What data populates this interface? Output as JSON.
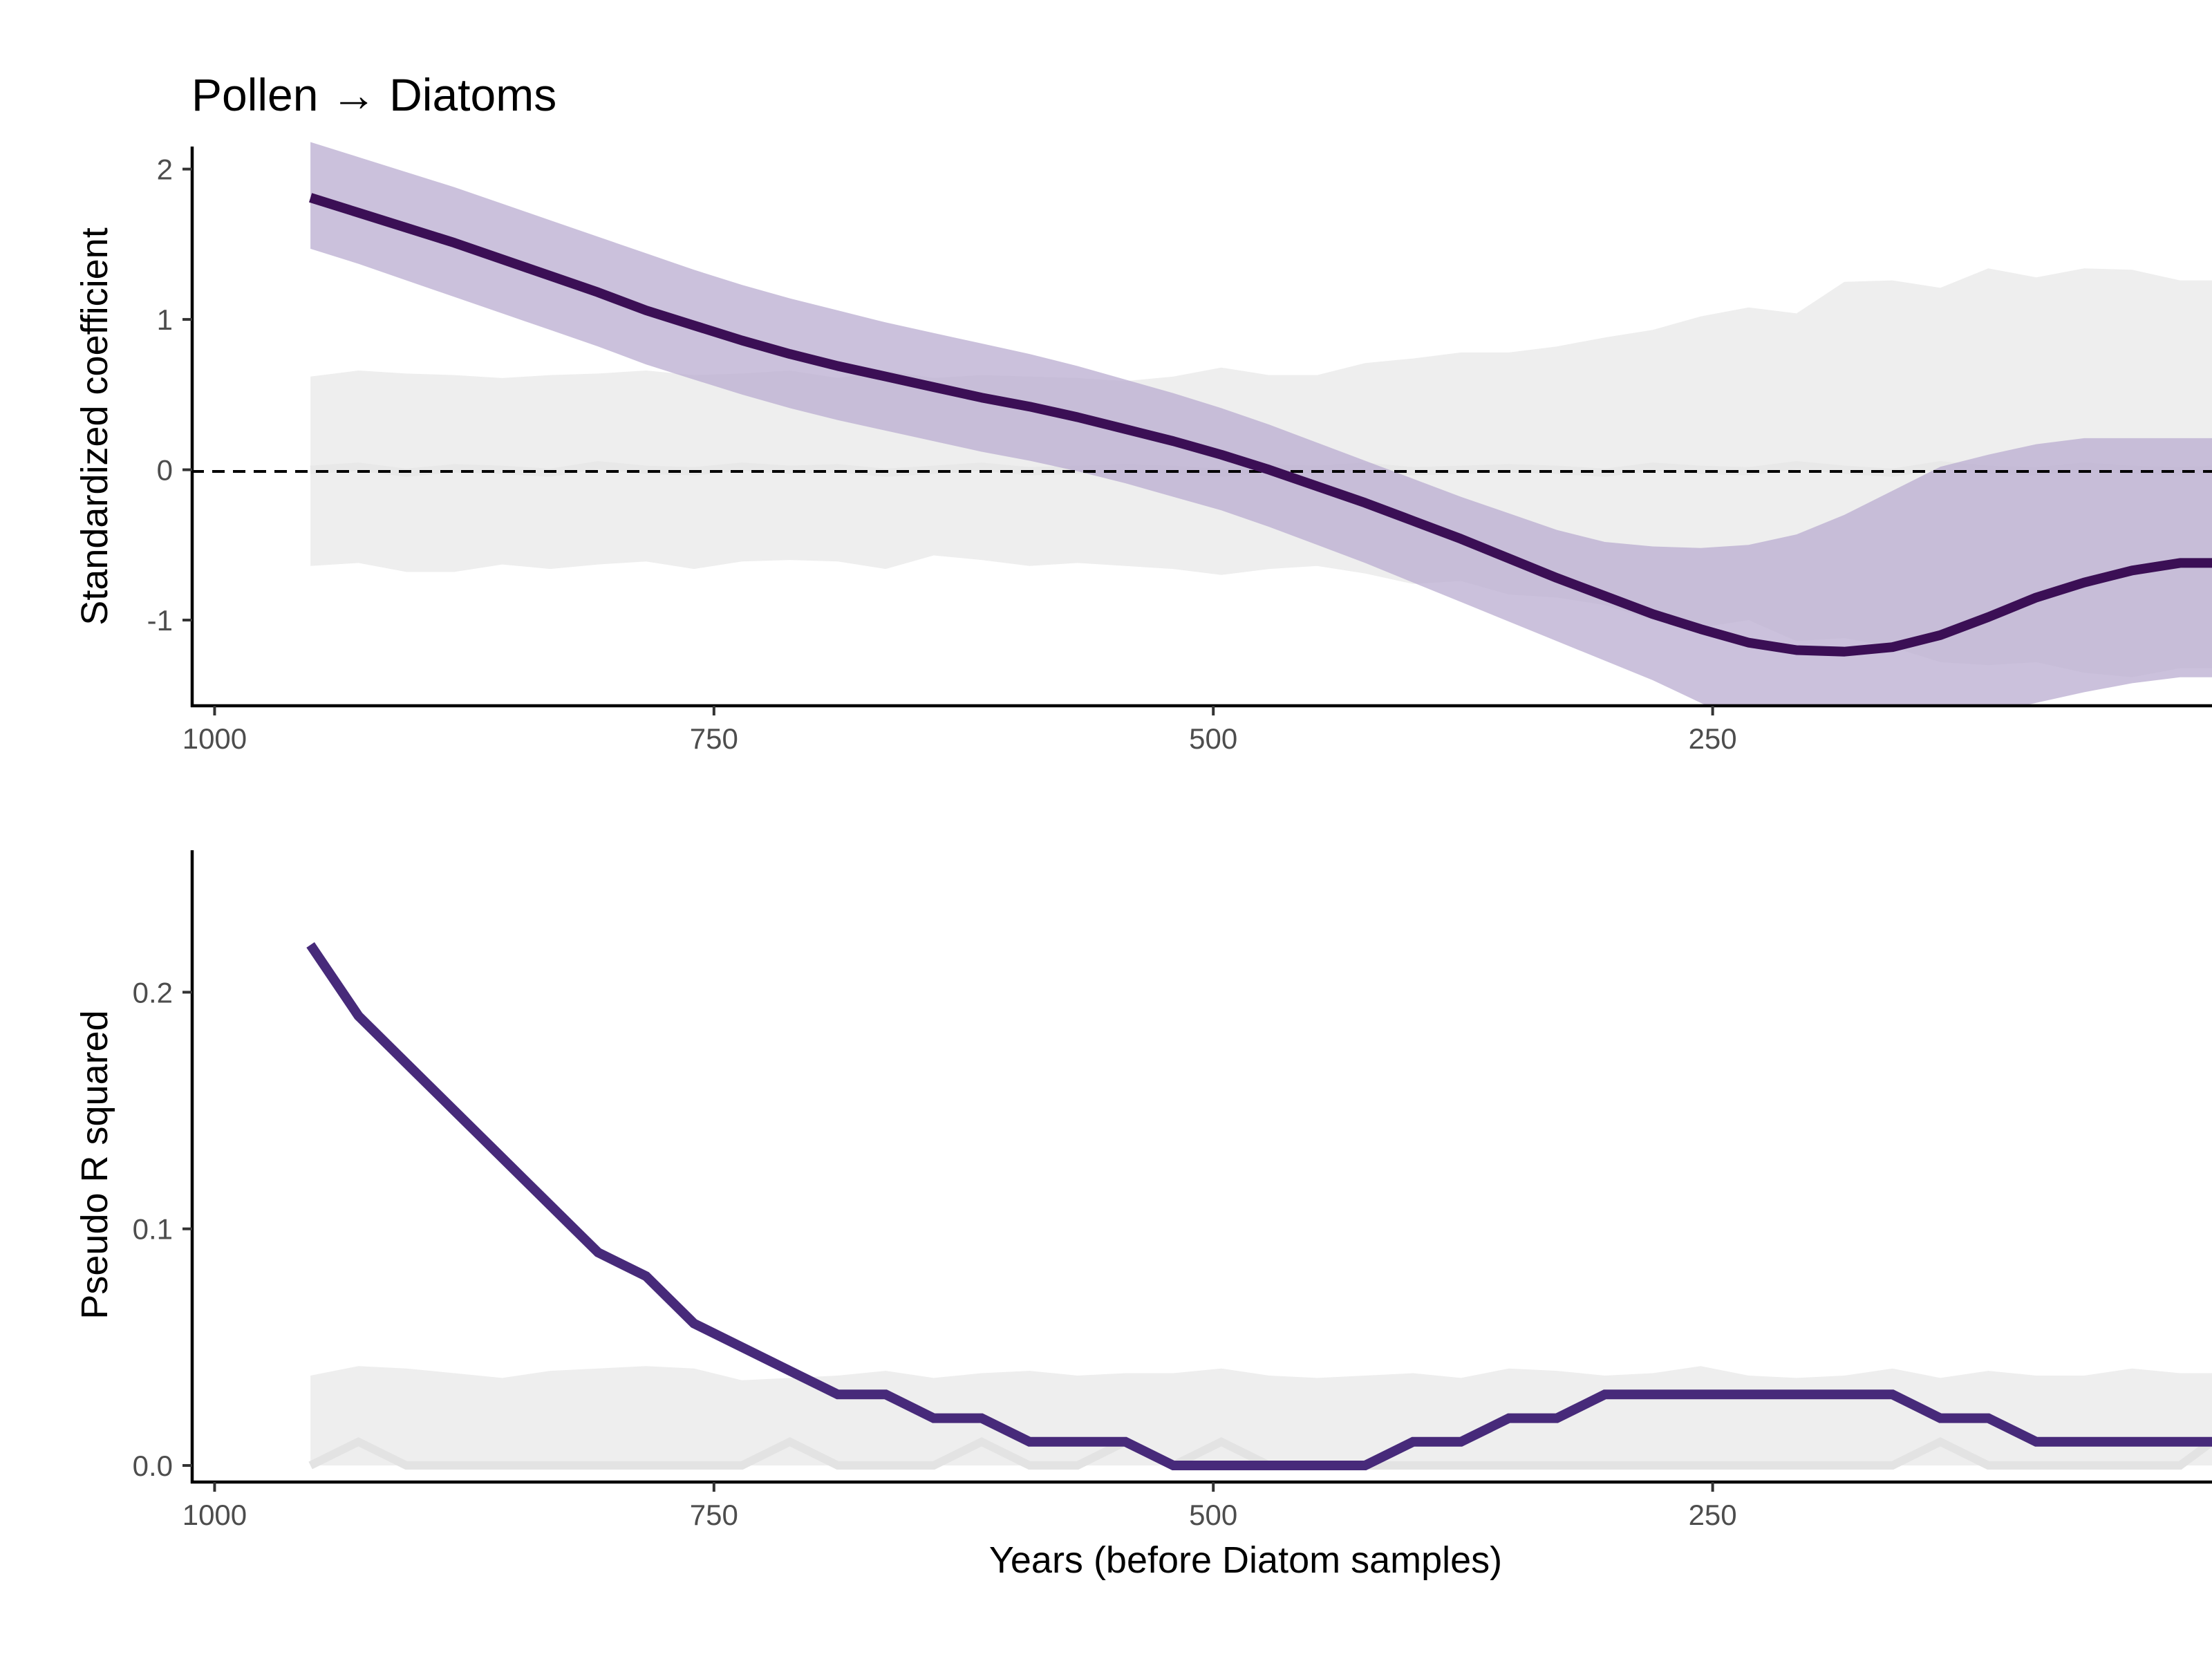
{
  "title": "Pollen → Diatoms",
  "chart_data": [
    {
      "type": "line",
      "panel": "top",
      "title": "Pollen → Diatoms",
      "xlabel": "",
      "ylabel": "Standardized coefficient",
      "xlim": [
        1005,
        0
      ],
      "x_reversed": true,
      "ylim": [
        -1.57,
        2.15
      ],
      "xticks": [
        1000,
        750,
        500,
        250
      ],
      "xtick_labels": [
        "1000",
        "750",
        "500",
        "250"
      ],
      "yticks": [
        2,
        1,
        0,
        -1
      ],
      "ytick_labels": [
        "2",
        "1",
        "0",
        "-1"
      ],
      "reference_line": 0,
      "grid": false,
      "x": [
        952,
        928,
        904,
        880,
        856,
        832,
        808,
        784,
        760,
        736,
        712,
        688,
        664,
        640,
        616,
        592,
        568,
        544,
        520,
        496,
        472,
        448,
        424,
        400,
        376,
        352,
        328,
        304,
        280,
        256,
        232,
        208,
        184,
        160,
        136,
        112,
        88,
        64,
        40,
        16,
        0
      ],
      "series": [
        {
          "role": "estimate",
          "color": "#3b0f55",
          "values": [
            1.81,
            1.71,
            1.61,
            1.51,
            1.4,
            1.29,
            1.18,
            1.06,
            0.96,
            0.86,
            0.77,
            0.69,
            0.62,
            0.55,
            0.48,
            0.42,
            0.35,
            0.27,
            0.19,
            0.1,
            0.0,
            -0.11,
            -0.22,
            -0.34,
            -0.46,
            -0.59,
            -0.72,
            -0.84,
            -0.96,
            -1.06,
            -1.15,
            -1.2,
            -1.21,
            -1.18,
            -1.1,
            -0.98,
            -0.85,
            -0.75,
            -0.67,
            -0.62,
            -0.62
          ]
        },
        {
          "role": "confidence_band",
          "color": "#b9acd0",
          "upper": [
            2.18,
            2.08,
            1.98,
            1.88,
            1.77,
            1.66,
            1.55,
            1.44,
            1.33,
            1.23,
            1.14,
            1.06,
            0.98,
            0.91,
            0.84,
            0.77,
            0.69,
            0.6,
            0.51,
            0.41,
            0.3,
            0.18,
            0.06,
            -0.06,
            -0.18,
            -0.29,
            -0.4,
            -0.48,
            -0.51,
            -0.52,
            -0.5,
            -0.43,
            -0.3,
            -0.14,
            0.02,
            0.1,
            0.17,
            0.21,
            0.21,
            0.21,
            0.21
          ],
          "lower": [
            1.47,
            1.37,
            1.26,
            1.15,
            1.04,
            0.93,
            0.82,
            0.7,
            0.6,
            0.5,
            0.41,
            0.33,
            0.26,
            0.19,
            0.12,
            0.06,
            -0.01,
            -0.09,
            -0.18,
            -0.27,
            -0.38,
            -0.5,
            -0.62,
            -0.75,
            -0.88,
            -1.01,
            -1.14,
            -1.27,
            -1.4,
            -1.55,
            -1.7,
            -1.85,
            -1.8,
            -1.75,
            -1.7,
            -1.62,
            -1.55,
            -1.48,
            -1.42,
            -1.38,
            -1.38
          ]
        },
        {
          "role": "null_band",
          "color": "#eeeeee",
          "upper": [
            0.62,
            0.66,
            0.64,
            0.63,
            0.61,
            0.63,
            0.64,
            0.66,
            0.63,
            0.64,
            0.66,
            0.61,
            0.66,
            0.61,
            0.63,
            0.62,
            0.61,
            0.59,
            0.62,
            0.68,
            0.63,
            0.63,
            0.71,
            0.74,
            0.78,
            0.78,
            0.82,
            0.88,
            0.93,
            1.02,
            1.08,
            1.04,
            1.25,
            1.26,
            1.21,
            1.34,
            1.28,
            1.34,
            1.33,
            1.26,
            1.26
          ],
          "lower": [
            -0.64,
            -0.62,
            -0.68,
            -0.68,
            -0.63,
            -0.66,
            -0.63,
            -0.61,
            -0.66,
            -0.61,
            -0.6,
            -0.61,
            -0.66,
            -0.57,
            -0.6,
            -0.64,
            -0.62,
            -0.64,
            -0.66,
            -0.7,
            -0.66,
            -0.64,
            -0.69,
            -0.76,
            -0.74,
            -0.83,
            -0.85,
            -0.9,
            -1.0,
            -1.05,
            -1.0,
            -1.14,
            -1.12,
            -1.18,
            -1.28,
            -1.3,
            -1.28,
            -1.35,
            -1.38,
            -1.32,
            -1.32
          ]
        },
        {
          "role": "null_median",
          "color": "#e8e8e8",
          "values": [
            0.0,
            0.02,
            -0.02,
            0.01,
            0.0,
            -0.02,
            0.03,
            0.0,
            -0.01,
            0.02,
            0.0,
            0.01,
            -0.02,
            0.0,
            0.02,
            -0.01,
            0.0,
            0.01,
            0.0,
            -0.02,
            0.01,
            0.0,
            0.02,
            -0.01,
            0.0,
            0.01,
            0.0,
            -0.02,
            0.02,
            0.0,
            -0.01,
            0.03,
            0.0,
            -0.02,
            0.03,
            0.0,
            -0.01,
            0.02,
            0.0,
            -0.01,
            0.0
          ]
        }
      ]
    },
    {
      "type": "line",
      "panel": "bottom",
      "xlabel": "Years (before Diatom samples)",
      "ylabel": "Pseudo R squared",
      "xlim": [
        1005,
        0
      ],
      "x_reversed": true,
      "ylim": [
        -0.007,
        0.26
      ],
      "xticks": [
        1000,
        750,
        500,
        250
      ],
      "xtick_labels": [
        "1000",
        "750",
        "500",
        "250"
      ],
      "yticks": [
        0.2,
        0.1,
        0.0
      ],
      "ytick_labels": [
        "0.2",
        "0.1",
        "0.0"
      ],
      "grid": false,
      "x": [
        952,
        928,
        904,
        880,
        856,
        832,
        808,
        784,
        760,
        736,
        712,
        688,
        664,
        640,
        616,
        592,
        568,
        544,
        520,
        496,
        472,
        448,
        424,
        400,
        376,
        352,
        328,
        304,
        280,
        256,
        232,
        208,
        184,
        160,
        136,
        112,
        88,
        64,
        40,
        16,
        0
      ],
      "series": [
        {
          "role": "estimate",
          "color": "#472a7a",
          "values": [
            0.22,
            0.19,
            0.17,
            0.15,
            0.13,
            0.11,
            0.09,
            0.08,
            0.06,
            0.05,
            0.04,
            0.03,
            0.03,
            0.02,
            0.02,
            0.01,
            0.01,
            0.01,
            0.0,
            0.0,
            0.0,
            0.0,
            0.0,
            0.01,
            0.01,
            0.02,
            0.02,
            0.03,
            0.03,
            0.03,
            0.03,
            0.03,
            0.03,
            0.03,
            0.02,
            0.02,
            0.01,
            0.01,
            0.01,
            0.01,
            0.01
          ]
        },
        {
          "role": "null_band",
          "color": "#eeeeee",
          "upper": [
            0.038,
            0.042,
            0.041,
            0.039,
            0.037,
            0.04,
            0.041,
            0.042,
            0.041,
            0.036,
            0.037,
            0.038,
            0.04,
            0.037,
            0.039,
            0.04,
            0.038,
            0.039,
            0.039,
            0.041,
            0.038,
            0.037,
            0.038,
            0.039,
            0.037,
            0.041,
            0.04,
            0.038,
            0.039,
            0.042,
            0.038,
            0.037,
            0.038,
            0.041,
            0.037,
            0.04,
            0.038,
            0.038,
            0.041,
            0.039,
            0.039
          ],
          "lower": [
            0.0,
            0.0,
            0.0,
            0.0,
            0.0,
            0.0,
            0.0,
            0.0,
            0.0,
            0.0,
            0.0,
            0.0,
            0.0,
            0.0,
            0.0,
            0.0,
            0.0,
            0.0,
            0.0,
            0.0,
            0.0,
            0.0,
            0.0,
            0.0,
            0.0,
            0.0,
            0.0,
            0.0,
            0.0,
            0.0,
            0.0,
            0.0,
            0.0,
            0.0,
            0.0,
            0.0,
            0.0,
            0.0,
            0.0,
            0.0,
            0.0
          ]
        },
        {
          "role": "null_median",
          "color": "#e3e3e3",
          "values": [
            0.0,
            0.01,
            0.0,
            0.0,
            0.0,
            0.0,
            0.0,
            0.0,
            0.0,
            0.0,
            0.01,
            0.0,
            0.0,
            0.0,
            0.01,
            0.0,
            0.0,
            0.01,
            0.0,
            0.01,
            0.0,
            0.0,
            0.0,
            0.0,
            0.0,
            0.0,
            0.0,
            0.0,
            0.0,
            0.0,
            0.0,
            0.0,
            0.0,
            0.0,
            0.01,
            0.0,
            0.0,
            0.0,
            0.0,
            0.0,
            0.01
          ]
        }
      ]
    }
  ]
}
